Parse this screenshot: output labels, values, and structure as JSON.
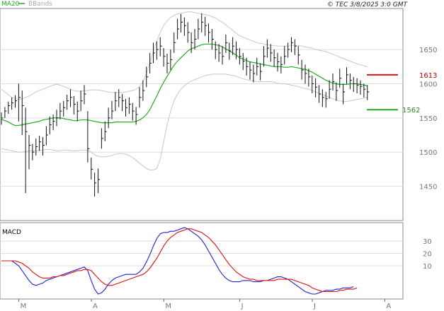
{
  "header": {
    "ma_label": "MA20",
    "bb_label": "BBands",
    "copyright": "© TEC 3/8/2025 3:0 GMT"
  },
  "colors": {
    "ma": "#22aa22",
    "bbands": "#c8c8c8",
    "price": "#111111",
    "macd": "#2222cc",
    "signal": "#dd1111",
    "grid": "#dddddd",
    "resistance": "#dd1111",
    "support": "#22aa22"
  },
  "chart_data": [
    {
      "type": "line",
      "name": "price",
      "x_tick_labels": [
        "M",
        "A",
        "M",
        "J",
        "J",
        "A"
      ],
      "x_tick_index": [
        3,
        24,
        45,
        67,
        88,
        109
      ],
      "y_ticks": [
        1450,
        1500,
        1550,
        1600,
        1650
      ],
      "ylim": [
        1400,
        1710
      ],
      "series": [
        {
          "name": "MA20",
          "role": "ma",
          "start_index": 0,
          "values": [
            1548,
            1546,
            1544,
            1541,
            1539,
            1539,
            1540,
            1541,
            1542,
            1543,
            1544,
            1545,
            1547,
            1548,
            1549,
            1550,
            1550,
            1550,
            1549,
            1548,
            1547,
            1546,
            1546,
            1547,
            1547,
            1547,
            1546,
            1545,
            1544,
            1543,
            1543,
            1543,
            1543,
            1544,
            1544,
            1544,
            1544,
            1544,
            1544,
            1545,
            1547,
            1550,
            1555,
            1562,
            1572,
            1582,
            1593,
            1602,
            1611,
            1619,
            1627,
            1633,
            1638,
            1643,
            1648,
            1651,
            1653,
            1655,
            1657,
            1658,
            1658,
            1658,
            1657,
            1656,
            1654,
            1651,
            1648,
            1645,
            1642,
            1638,
            1636,
            1634,
            1632,
            1631,
            1630,
            1629,
            1628,
            1627,
            1626,
            1625,
            1625,
            1625,
            1624,
            1624,
            1625,
            1624,
            1623,
            1622,
            1621,
            1619,
            1617,
            1614,
            1611,
            1608,
            1605,
            1603,
            1601,
            1600,
            1599,
            1599,
            1599,
            1600,
            1600,
            1600,
            1599,
            1598,
            1597
          ]
        },
        {
          "name": "BBands upper",
          "role": "bbands",
          "start_index": 0,
          "values": [
            1592,
            1588,
            1584,
            1580,
            1578,
            1577,
            1578,
            1580,
            1582,
            1585,
            1588,
            1590,
            1592,
            1594,
            1596,
            1598,
            1599,
            1598,
            1596,
            1594,
            1592,
            1590,
            1589,
            1589,
            1590,
            1590,
            1591,
            1591,
            1591,
            1590,
            1589,
            1588,
            1587,
            1587,
            1587,
            1587,
            1588,
            1589,
            1590,
            1592,
            1596,
            1603,
            1615,
            1630,
            1647,
            1662,
            1675,
            1685,
            1692,
            1697,
            1700,
            1702,
            1703,
            1704,
            1705,
            1705,
            1704,
            1703,
            1702,
            1701,
            1700,
            1698,
            1696,
            1693,
            1690,
            1686,
            1682,
            1678,
            1674,
            1670,
            1668,
            1666,
            1664,
            1662,
            1660,
            1659,
            1658,
            1657,
            1656,
            1656,
            1655,
            1655,
            1655,
            1655,
            1656,
            1656,
            1656,
            1655,
            1654,
            1653,
            1652,
            1650,
            1649,
            1648,
            1647,
            1645,
            1643,
            1641,
            1639,
            1637,
            1635,
            1633,
            1631,
            1629,
            1628,
            1626,
            1625
          ]
        },
        {
          "name": "BBands lower",
          "role": "bbands",
          "start_index": 0,
          "values": [
            1505,
            1504,
            1503,
            1502,
            1501,
            1500,
            1500,
            1501,
            1502,
            1502,
            1502,
            1502,
            1503,
            1504,
            1504,
            1503,
            1502,
            1502,
            1503,
            1503,
            1502,
            1502,
            1502,
            1503,
            1503,
            1503,
            1500,
            1496,
            1494,
            1493,
            1493,
            1494,
            1495,
            1497,
            1498,
            1498,
            1497,
            1495,
            1492,
            1488,
            1484,
            1480,
            1476,
            1474,
            1474,
            1476,
            1490,
            1515,
            1540,
            1560,
            1575,
            1585,
            1592,
            1597,
            1601,
            1604,
            1606,
            1608,
            1610,
            1612,
            1613,
            1614,
            1614,
            1614,
            1614,
            1614,
            1613,
            1612,
            1611,
            1609,
            1607,
            1606,
            1605,
            1604,
            1603,
            1603,
            1603,
            1603,
            1603,
            1602,
            1601,
            1600,
            1600,
            1599,
            1598,
            1597,
            1596,
            1594,
            1593,
            1592,
            1590,
            1588,
            1586,
            1584,
            1582,
            1580,
            1578,
            1576,
            1575,
            1574,
            1574,
            1575,
            1576,
            1577,
            1578,
            1579,
            1580
          ]
        },
        {
          "name": "price",
          "role": "price",
          "start_index": 0,
          "values": [
            1550,
            1560,
            1568,
            1572,
            1575,
            1580,
            1568,
            1530,
            1510,
            1500,
            1508,
            1515,
            1510,
            1525,
            1540,
            1545,
            1550,
            1560,
            1565,
            1575,
            1580,
            1570,
            1560,
            1575,
            1585,
            1505,
            1475,
            1455,
            1460,
            1520,
            1530,
            1550,
            1560,
            1575,
            1580,
            1575,
            1565,
            1570,
            1560,
            1555,
            1580,
            1590,
            1610,
            1630,
            1645,
            1650,
            1655,
            1640,
            1630,
            1635,
            1660,
            1680,
            1690,
            1685,
            1675,
            1660,
            1665,
            1680,
            1690,
            1685,
            1675,
            1665,
            1650,
            1645,
            1640,
            1660,
            1648,
            1655,
            1650,
            1640,
            1633,
            1625,
            1620,
            1615,
            1625,
            1618,
            1640,
            1652,
            1645,
            1638,
            1632,
            1628,
            1640,
            1650,
            1660,
            1655,
            1642,
            1620,
            1615,
            1610,
            1600,
            1595,
            1585,
            1580,
            1578,
            1592,
            1603,
            1590,
            1608,
            1588,
            1613,
            1605,
            1600,
            1598,
            1596,
            1592,
            1588
          ]
        },
        {
          "name": "price high",
          "role": "high",
          "start_index": 0,
          "values": [
            1558,
            1566,
            1574,
            1580,
            1583,
            1600,
            1590,
            1565,
            1525,
            1512,
            1520,
            1524,
            1522,
            1538,
            1552,
            1555,
            1562,
            1572,
            1575,
            1584,
            1592,
            1582,
            1574,
            1590,
            1598,
            1560,
            1492,
            1470,
            1476,
            1535,
            1545,
            1565,
            1575,
            1588,
            1592,
            1585,
            1578,
            1580,
            1572,
            1566,
            1595,
            1605,
            1625,
            1645,
            1660,
            1662,
            1668,
            1652,
            1644,
            1650,
            1675,
            1695,
            1702,
            1697,
            1690,
            1675,
            1680,
            1695,
            1703,
            1698,
            1688,
            1680,
            1662,
            1658,
            1655,
            1672,
            1660,
            1668,
            1662,
            1652,
            1645,
            1638,
            1632,
            1628,
            1638,
            1630,
            1655,
            1665,
            1658,
            1650,
            1645,
            1640,
            1655,
            1660,
            1668,
            1665,
            1655,
            1635,
            1628,
            1622,
            1612,
            1608,
            1598,
            1592,
            1588,
            1605,
            1615,
            1602,
            1622,
            1600,
            1624,
            1615,
            1610,
            1608,
            1605,
            1600,
            1598
          ]
        },
        {
          "name": "price low",
          "role": "low",
          "start_index": 0,
          "values": [
            1540,
            1550,
            1556,
            1562,
            1565,
            1545,
            1525,
            1440,
            1475,
            1488,
            1495,
            1502,
            1495,
            1510,
            1526,
            1532,
            1538,
            1548,
            1552,
            1562,
            1566,
            1555,
            1545,
            1560,
            1570,
            1485,
            1460,
            1435,
            1440,
            1505,
            1516,
            1535,
            1548,
            1560,
            1566,
            1560,
            1552,
            1556,
            1546,
            1540,
            1565,
            1575,
            1595,
            1615,
            1630,
            1635,
            1640,
            1625,
            1615,
            1620,
            1645,
            1665,
            1675,
            1670,
            1660,
            1645,
            1650,
            1665,
            1675,
            1670,
            1660,
            1650,
            1636,
            1632,
            1628,
            1645,
            1635,
            1642,
            1636,
            1628,
            1620,
            1612,
            1606,
            1602,
            1612,
            1605,
            1625,
            1638,
            1632,
            1625,
            1618,
            1615,
            1628,
            1638,
            1646,
            1642,
            1628,
            1606,
            1600,
            1596,
            1586,
            1580,
            1572,
            1566,
            1565,
            1578,
            1590,
            1575,
            1594,
            1570,
            1600,
            1592,
            1588,
            1586,
            1584,
            1580,
            1576
          ]
        }
      ],
      "markers": [
        {
          "label": "1613",
          "value": 1613,
          "role": "resistance"
        },
        {
          "label": "1562",
          "value": 1562,
          "role": "support"
        }
      ]
    },
    {
      "type": "line",
      "title": "MACD",
      "y_ticks": [
        10,
        20,
        30
      ],
      "y_tick_labels": [
        "10",
        "20",
        "30"
      ],
      "ylim": [
        -17,
        45
      ],
      "series": [
        {
          "name": "MACD",
          "role": "macd",
          "values": [
            14,
            14,
            14,
            14,
            12,
            10,
            6,
            2,
            -2,
            -5,
            -6,
            -5,
            -4,
            -2,
            -1,
            0,
            1,
            2,
            3,
            4,
            5,
            6,
            7,
            8,
            9,
            6,
            -2,
            -9,
            -13,
            -12,
            -9,
            -5,
            -2,
            0,
            1,
            2,
            3,
            3,
            3,
            3,
            5,
            8,
            13,
            19,
            26,
            32,
            36,
            37,
            37,
            38,
            38,
            39,
            40,
            41,
            40,
            38,
            36,
            34,
            31,
            27,
            22,
            17,
            12,
            7,
            3,
            0,
            -2,
            -3,
            -3,
            -3,
            -2,
            -2,
            -2,
            -3,
            -3,
            -3,
            -2,
            -2,
            -1,
            0,
            1,
            1,
            0,
            -1,
            -3,
            -5,
            -7,
            -9,
            -11,
            -12,
            -13,
            -13,
            -12,
            -11,
            -10,
            -10,
            -10,
            -9,
            -9,
            -8,
            -8,
            -8,
            -7
          ]
        },
        {
          "name": "Signal",
          "role": "signal",
          "values": [
            14,
            14,
            14,
            14,
            14,
            13,
            12,
            10,
            8,
            5,
            3,
            1,
            0,
            0,
            0,
            1,
            1,
            2,
            2,
            3,
            4,
            5,
            6,
            6,
            7,
            7,
            6,
            3,
            0,
            -3,
            -5,
            -6,
            -6,
            -5,
            -4,
            -3,
            -2,
            -1,
            0,
            1,
            2,
            3,
            5,
            8,
            12,
            16,
            21,
            26,
            30,
            33,
            35,
            37,
            38,
            39,
            40,
            40,
            39,
            38,
            37,
            35,
            33,
            30,
            27,
            23,
            19,
            15,
            11,
            8,
            5,
            3,
            1,
            0,
            -1,
            -1,
            -2,
            -2,
            -2,
            -2,
            -2,
            -2,
            -1,
            -1,
            -1,
            -1,
            -1,
            -2,
            -3,
            -4,
            -5,
            -6,
            -8,
            -9,
            -10,
            -11,
            -11,
            -11,
            -11,
            -11,
            -10,
            -10,
            -9,
            -9,
            -9,
            -8
          ]
        }
      ]
    }
  ]
}
